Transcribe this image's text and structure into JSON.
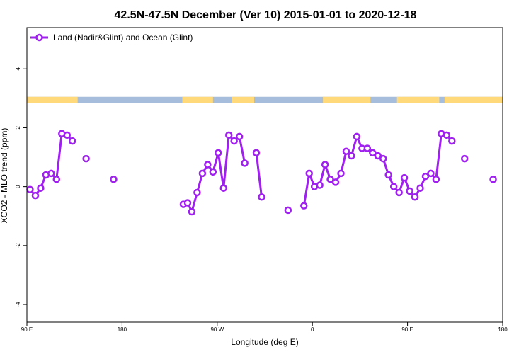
{
  "chart_data": {
    "type": "line",
    "title": "42.5N-47.5N December (Ver 10)   2015-01-01 to 2020-12-18",
    "xlabel": "Longitude (deg E)",
    "ylabel": "XCO2 - MLO trend (ppm)",
    "xlim": [
      90,
      540
    ],
    "ylim": [
      -4.6,
      5.4
    ],
    "x_ticks": [
      {
        "value": 90,
        "label": "90 E"
      },
      {
        "value": 180,
        "label": "180"
      },
      {
        "value": 270,
        "label": "90 W"
      },
      {
        "value": 360,
        "label": "0"
      },
      {
        "value": 450,
        "label": "90 E"
      },
      {
        "value": 540,
        "label": "180"
      }
    ],
    "y_ticks": [
      {
        "value": -4,
        "label": "-4"
      },
      {
        "value": -2,
        "label": "-2"
      },
      {
        "value": 0,
        "label": "0"
      },
      {
        "value": 2,
        "label": "2"
      },
      {
        "value": 4,
        "label": "4"
      }
    ],
    "grid": false,
    "legend_position": "top-left",
    "land_ocean_strip": {
      "y_range": [
        2.85,
        3.05
      ],
      "land_color": "#FFD97A",
      "ocean_color": "#A6BDDB",
      "land_segments": [
        [
          90,
          138
        ],
        [
          237,
          266
        ],
        [
          284,
          305
        ],
        [
          370,
          415
        ],
        [
          440,
          480
        ],
        [
          485,
          540
        ]
      ]
    },
    "series": [
      {
        "name": "Land (Nadir&Glint) and Ocean (Glint)",
        "color": "#A020F0",
        "points": [
          [
            93,
            -0.1
          ],
          [
            98,
            -0.3
          ],
          [
            103,
            -0.05
          ],
          [
            108,
            0.4
          ],
          [
            113,
            0.45
          ],
          [
            118,
            0.25
          ],
          [
            123,
            1.8
          ],
          [
            128,
            1.75
          ],
          [
            133,
            1.55
          ],
          null,
          [
            146,
            0.95
          ],
          null,
          [
            172,
            0.25
          ],
          null,
          [
            238,
            -0.6
          ],
          [
            242,
            -0.55
          ],
          [
            246,
            -0.85
          ],
          [
            251,
            -0.2
          ],
          [
            256,
            0.45
          ],
          [
            261,
            0.75
          ],
          [
            266,
            0.5
          ],
          [
            271,
            1.15
          ],
          [
            276,
            -0.05
          ],
          [
            281,
            1.75
          ],
          [
            286,
            1.55
          ],
          [
            291,
            1.7
          ],
          [
            296,
            0.8
          ],
          null,
          [
            307,
            1.15
          ],
          [
            312,
            -0.35
          ],
          null,
          [
            337,
            -0.8
          ],
          null,
          [
            352,
            -0.65
          ],
          [
            357,
            0.45
          ],
          [
            362,
            0.0
          ],
          [
            367,
            0.05
          ],
          [
            372,
            0.75
          ],
          [
            377,
            0.25
          ],
          [
            382,
            0.15
          ],
          [
            387,
            0.45
          ],
          [
            392,
            1.2
          ],
          [
            397,
            1.05
          ],
          [
            402,
            1.7
          ],
          [
            407,
            1.3
          ],
          [
            412,
            1.3
          ],
          [
            417,
            1.15
          ],
          [
            422,
            1.05
          ],
          [
            427,
            0.95
          ],
          [
            432,
            0.4
          ],
          [
            437,
            0.0
          ],
          [
            442,
            -0.2
          ],
          [
            447,
            0.3
          ],
          [
            452,
            -0.15
          ],
          [
            457,
            -0.35
          ],
          [
            462,
            -0.05
          ],
          [
            467,
            0.35
          ],
          [
            472,
            0.45
          ],
          [
            477,
            0.25
          ],
          [
            482,
            1.8
          ],
          [
            487,
            1.75
          ],
          [
            492,
            1.55
          ],
          null,
          [
            504,
            0.95
          ],
          null,
          [
            531,
            0.25
          ]
        ]
      }
    ]
  }
}
